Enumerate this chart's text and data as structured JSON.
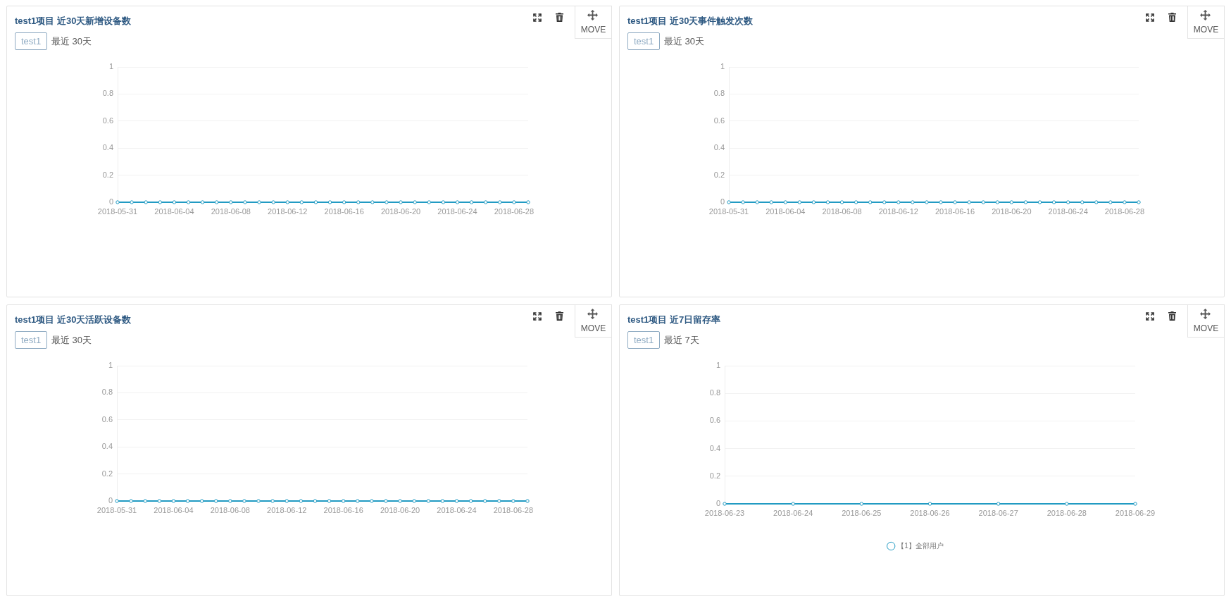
{
  "chart_data": [
    {
      "type": "line",
      "title": "test1项目 近30天新增设备数",
      "subtitle": "最近 30天",
      "annotations": [
        "test1",
        "MOVE"
      ],
      "categories": [
        "2018-05-31",
        null,
        null,
        null,
        "2018-06-04",
        null,
        null,
        null,
        "2018-06-08",
        null,
        null,
        null,
        "2018-06-12",
        null,
        null,
        null,
        "2018-06-16",
        null,
        null,
        null,
        "2018-06-20",
        null,
        null,
        null,
        "2018-06-24",
        null,
        null,
        null,
        "2018-06-28",
        null
      ],
      "series": [
        {
          "color": "#229bc3",
          "values": [
            0,
            0,
            0,
            0,
            0,
            0,
            0,
            0,
            0,
            0,
            0,
            0,
            0,
            0,
            0,
            0,
            0,
            0,
            0,
            0,
            0,
            0,
            0,
            0,
            0,
            0,
            0,
            0,
            0,
            0
          ]
        }
      ],
      "ylim": [
        0,
        1
      ],
      "yticks": [
        0,
        0.2,
        0.4,
        0.6,
        0.8,
        1
      ],
      "grid": "y",
      "marker": "circle"
    },
    {
      "type": "line",
      "title": "test1项目 近30天事件触发次数",
      "subtitle": "最近 30天",
      "annotations": [
        "test1",
        "MOVE"
      ],
      "categories": [
        "2018-05-31",
        null,
        null,
        null,
        "2018-06-04",
        null,
        null,
        null,
        "2018-06-08",
        null,
        null,
        null,
        "2018-06-12",
        null,
        null,
        null,
        "2018-06-16",
        null,
        null,
        null,
        "2018-06-20",
        null,
        null,
        null,
        "2018-06-24",
        null,
        null,
        null,
        "2018-06-28",
        null
      ],
      "series": [
        {
          "color": "#229bc3",
          "values": [
            0,
            0,
            0,
            0,
            0,
            0,
            0,
            0,
            0,
            0,
            0,
            0,
            0,
            0,
            0,
            0,
            0,
            0,
            0,
            0,
            0,
            0,
            0,
            0,
            0,
            0,
            0,
            0,
            0,
            0
          ]
        }
      ],
      "ylim": [
        0,
        1
      ],
      "yticks": [
        0,
        0.2,
        0.4,
        0.6,
        0.8,
        1
      ],
      "grid": "y",
      "marker": "circle"
    },
    {
      "type": "line",
      "title": "test1项目 近30天活跃设备数",
      "subtitle": "最近 30天",
      "annotations": [
        "test1",
        "MOVE"
      ],
      "categories": [
        "2018-05-31",
        null,
        null,
        null,
        "2018-06-04",
        null,
        null,
        null,
        "2018-06-08",
        null,
        null,
        null,
        "2018-06-12",
        null,
        null,
        null,
        "2018-06-16",
        null,
        null,
        null,
        "2018-06-20",
        null,
        null,
        null,
        "2018-06-24",
        null,
        null,
        null,
        "2018-06-28",
        null
      ],
      "series": [
        {
          "color": "#229bc3",
          "values": [
            0,
            0,
            0,
            0,
            0,
            0,
            0,
            0,
            0,
            0,
            0,
            0,
            0,
            0,
            0,
            0,
            0,
            0,
            0,
            0,
            0,
            0,
            0,
            0,
            0,
            0,
            0,
            0,
            0,
            0
          ]
        }
      ],
      "ylim": [
        0,
        1
      ],
      "yticks": [
        0,
        0.2,
        0.4,
        0.6,
        0.8,
        1
      ],
      "grid": "y",
      "marker": "circle"
    },
    {
      "type": "line",
      "title": "test1项目 近7日留存率",
      "subtitle": "最近 7天",
      "annotations": [
        "test1",
        "MOVE"
      ],
      "categories": [
        "2018-06-23",
        "2018-06-24",
        "2018-06-25",
        "2018-06-26",
        "2018-06-27",
        "2018-06-28",
        "2018-06-29"
      ],
      "series": [
        {
          "name": "【1】全部用户",
          "color": "#229bc3",
          "values": [
            0,
            0,
            0,
            0,
            0,
            0,
            0
          ]
        }
      ],
      "ylim": [
        0,
        1
      ],
      "yticks": [
        0,
        0.2,
        0.4,
        0.6,
        0.8,
        1
      ],
      "grid": "y",
      "marker": "circle",
      "legend": "bottom"
    }
  ]
}
